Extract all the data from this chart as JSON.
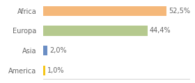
{
  "categories": [
    "America",
    "Asia",
    "Europa",
    "Africa"
  ],
  "values": [
    1.0,
    2.0,
    44.4,
    52.5
  ],
  "labels": [
    "1,0%",
    "2,0%",
    "44,4%",
    "52,5%"
  ],
  "bar_colors": [
    "#f5c518",
    "#6b8ec4",
    "#b5c98e",
    "#f5b87a"
  ],
  "xlim": [
    0,
    62
  ],
  "background_color": "#ffffff",
  "label_fontsize": 7.0,
  "tick_fontsize": 7.0,
  "bar_height": 0.5
}
